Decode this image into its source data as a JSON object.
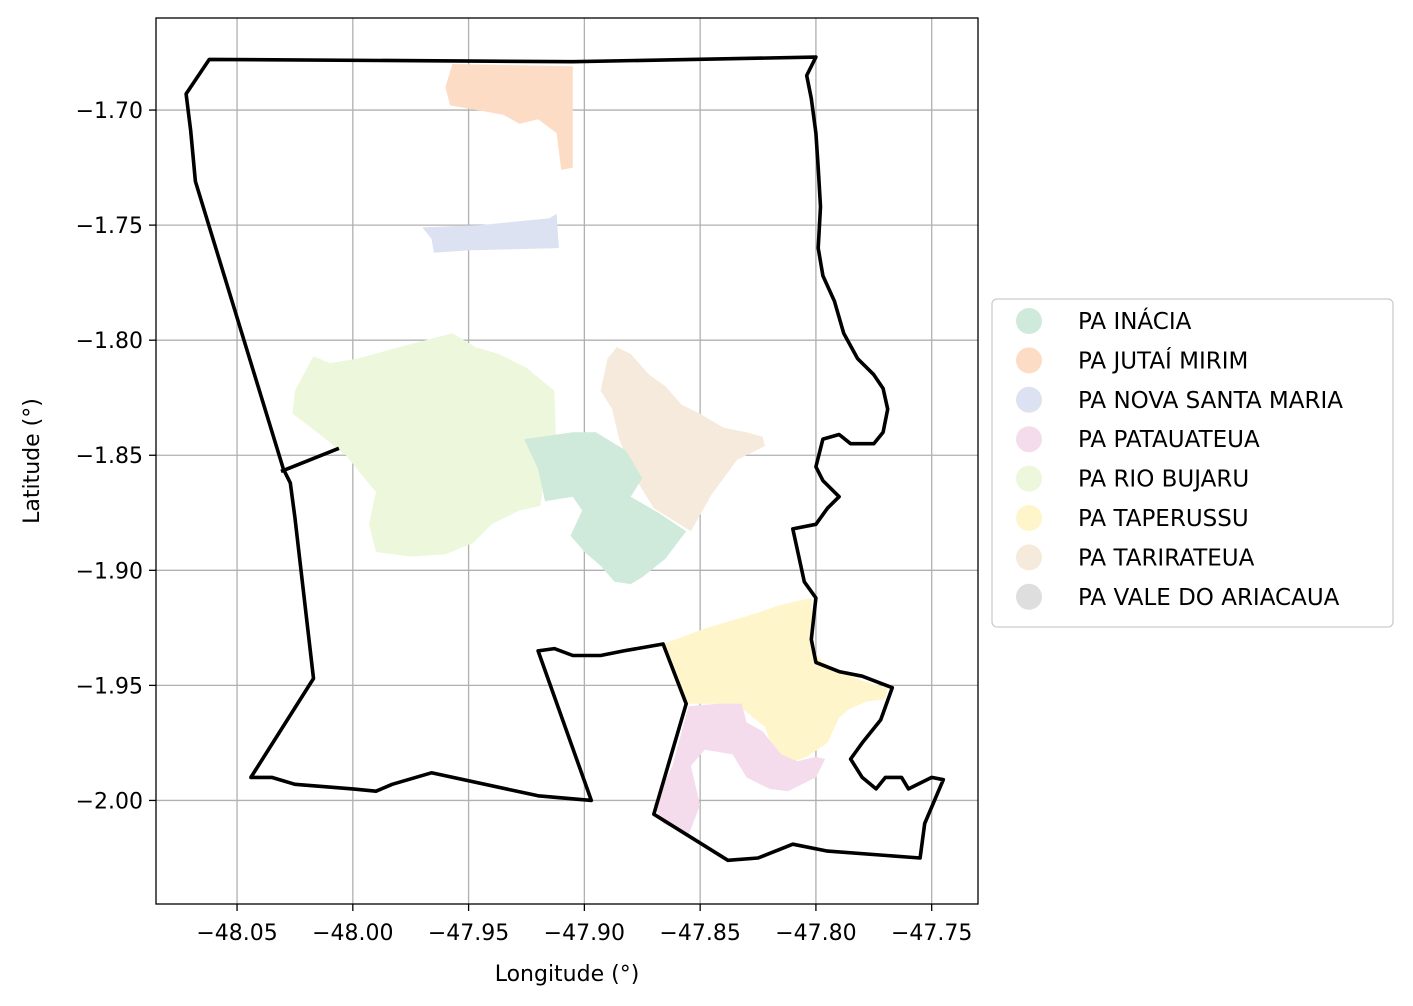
{
  "chart_data": {
    "type": "map",
    "xlabel": "Longitude (°)",
    "ylabel": "Latitude (°)",
    "xlim": [
      -48.085,
      -47.73
    ],
    "ylim": [
      -2.045,
      -1.66
    ],
    "grid": true,
    "legend_placement": "center-right",
    "x_ticks": [
      {
        "value": -48.05,
        "label": "−48.05"
      },
      {
        "value": -48.0,
        "label": "−48.00"
      },
      {
        "value": -47.95,
        "label": "−47.95"
      },
      {
        "value": -47.9,
        "label": "−47.90"
      },
      {
        "value": -47.85,
        "label": "−47.85"
      },
      {
        "value": -47.8,
        "label": "−47.80"
      },
      {
        "value": -47.75,
        "label": "−47.75"
      }
    ],
    "y_ticks": [
      {
        "value": -1.7,
        "label": "−1.70"
      },
      {
        "value": -1.75,
        "label": "−1.75"
      },
      {
        "value": -1.8,
        "label": "−1.80"
      },
      {
        "value": -1.85,
        "label": "−1.85"
      },
      {
        "value": -1.9,
        "label": "−1.90"
      },
      {
        "value": -1.95,
        "label": "−1.95"
      },
      {
        "value": -2.0,
        "label": "−2.00"
      }
    ],
    "legend": [
      {
        "name": "PA INÁCIA",
        "color": "#cfeadb"
      },
      {
        "name": "PA JUTAÍ MIRIM",
        "color": "#fddcc6"
      },
      {
        "name": "PA NOVA SANTA MARIA",
        "color": "#dce2f1"
      },
      {
        "name": "PA PATAUATEUA",
        "color": "#f5dcec"
      },
      {
        "name": "PA RIO BUJARU",
        "color": "#ecf7dc"
      },
      {
        "name": "PA TAPERUSSU",
        "color": "#fff5cb"
      },
      {
        "name": "PA TARIRATEUA",
        "color": "#f5eadb"
      },
      {
        "name": "PA VALE DO ARIACAUA",
        "color": "#dedede"
      }
    ],
    "regions": [
      {
        "name": "PA JUTAÍ MIRIM",
        "color": "#fddcc6",
        "coords": [
          [
            -47.957,
            -1.68
          ],
          [
            -47.905,
            -1.681
          ],
          [
            -47.905,
            -1.725
          ],
          [
            -47.91,
            -1.726
          ],
          [
            -47.912,
            -1.71
          ],
          [
            -47.92,
            -1.704
          ],
          [
            -47.928,
            -1.706
          ],
          [
            -47.935,
            -1.702
          ],
          [
            -47.958,
            -1.698
          ],
          [
            -47.96,
            -1.69
          ]
        ]
      },
      {
        "name": "PA NOVA SANTA MARIA",
        "color": "#dce2f1",
        "coords": [
          [
            -47.97,
            -1.751
          ],
          [
            -47.945,
            -1.75
          ],
          [
            -47.915,
            -1.747
          ],
          [
            -47.912,
            -1.745
          ],
          [
            -47.911,
            -1.76
          ],
          [
            -47.95,
            -1.761
          ],
          [
            -47.965,
            -1.762
          ],
          [
            -47.966,
            -1.756
          ]
        ]
      },
      {
        "name": "PA RIO BUJARU",
        "color": "#ecf7dc",
        "coords": [
          [
            -48.025,
            -1.822
          ],
          [
            -48.017,
            -1.807
          ],
          [
            -48.01,
            -1.81
          ],
          [
            -47.998,
            -1.808
          ],
          [
            -47.98,
            -1.803
          ],
          [
            -47.957,
            -1.797
          ],
          [
            -47.947,
            -1.803
          ],
          [
            -47.937,
            -1.806
          ],
          [
            -47.925,
            -1.812
          ],
          [
            -47.913,
            -1.822
          ],
          [
            -47.912,
            -1.85
          ],
          [
            -47.918,
            -1.865
          ],
          [
            -47.919,
            -1.872
          ],
          [
            -47.928,
            -1.874
          ],
          [
            -47.94,
            -1.88
          ],
          [
            -47.945,
            -1.885
          ],
          [
            -47.948,
            -1.888
          ],
          [
            -47.96,
            -1.893
          ],
          [
            -47.975,
            -1.894
          ],
          [
            -47.99,
            -1.892
          ],
          [
            -47.993,
            -1.88
          ],
          [
            -47.99,
            -1.866
          ],
          [
            -47.995,
            -1.86
          ],
          [
            -48.003,
            -1.85
          ],
          [
            -48.018,
            -1.838
          ],
          [
            -48.026,
            -1.832
          ]
        ]
      },
      {
        "name": "PA TARIRATEUA",
        "color": "#f5eadb",
        "coords": [
          [
            -47.89,
            -1.808
          ],
          [
            -47.886,
            -1.803
          ],
          [
            -47.88,
            -1.806
          ],
          [
            -47.872,
            -1.815
          ],
          [
            -47.865,
            -1.82
          ],
          [
            -47.858,
            -1.828
          ],
          [
            -47.85,
            -1.832
          ],
          [
            -47.84,
            -1.838
          ],
          [
            -47.83,
            -1.84
          ],
          [
            -47.823,
            -1.842
          ],
          [
            -47.822,
            -1.846
          ],
          [
            -47.834,
            -1.852
          ],
          [
            -47.845,
            -1.867
          ],
          [
            -47.854,
            -1.883
          ],
          [
            -47.87,
            -1.873
          ],
          [
            -47.878,
            -1.86
          ],
          [
            -47.885,
            -1.843
          ],
          [
            -47.888,
            -1.83
          ],
          [
            -47.893,
            -1.822
          ]
        ]
      },
      {
        "name": "PA INÁCIA",
        "color": "#cfeadb",
        "coords": [
          [
            -47.926,
            -1.843
          ],
          [
            -47.905,
            -1.84
          ],
          [
            -47.895,
            -1.84
          ],
          [
            -47.882,
            -1.848
          ],
          [
            -47.875,
            -1.86
          ],
          [
            -47.88,
            -1.868
          ],
          [
            -47.868,
            -1.875
          ],
          [
            -47.856,
            -1.883
          ],
          [
            -47.865,
            -1.895
          ],
          [
            -47.875,
            -1.903
          ],
          [
            -47.88,
            -1.906
          ],
          [
            -47.887,
            -1.905
          ],
          [
            -47.893,
            -1.898
          ],
          [
            -47.9,
            -1.892
          ],
          [
            -47.906,
            -1.885
          ],
          [
            -47.901,
            -1.874
          ],
          [
            -47.905,
            -1.868
          ],
          [
            -47.917,
            -1.87
          ],
          [
            -47.92,
            -1.856
          ]
        ]
      },
      {
        "name": "PA TAPERUSSU",
        "color": "#fff5cb",
        "coords": [
          [
            -47.866,
            -1.932
          ],
          [
            -47.847,
            -1.925
          ],
          [
            -47.83,
            -1.92
          ],
          [
            -47.815,
            -1.915
          ],
          [
            -47.802,
            -1.912
          ],
          [
            -47.801,
            -1.935
          ],
          [
            -47.797,
            -1.94
          ],
          [
            -47.787,
            -1.945
          ],
          [
            -47.78,
            -1.948
          ],
          [
            -47.769,
            -1.951
          ],
          [
            -47.77,
            -1.956
          ],
          [
            -47.778,
            -1.957
          ],
          [
            -47.785,
            -1.96
          ],
          [
            -47.79,
            -1.964
          ],
          [
            -47.795,
            -1.975
          ],
          [
            -47.804,
            -1.981
          ],
          [
            -47.815,
            -1.985
          ],
          [
            -47.818,
            -1.98
          ],
          [
            -47.822,
            -1.968
          ],
          [
            -47.832,
            -1.96
          ],
          [
            -47.842,
            -1.958
          ],
          [
            -47.857,
            -1.958
          ],
          [
            -47.862,
            -1.945
          ]
        ]
      },
      {
        "name": "PA PATAUATEUA",
        "color": "#f5dcec",
        "coords": [
          [
            -47.855,
            -1.959
          ],
          [
            -47.842,
            -1.958
          ],
          [
            -47.832,
            -1.958
          ],
          [
            -47.83,
            -1.966
          ],
          [
            -47.823,
            -1.97
          ],
          [
            -47.815,
            -1.98
          ],
          [
            -47.808,
            -1.983
          ],
          [
            -47.8,
            -1.981
          ],
          [
            -47.796,
            -1.982
          ],
          [
            -47.8,
            -1.99
          ],
          [
            -47.812,
            -1.996
          ],
          [
            -47.82,
            -1.995
          ],
          [
            -47.83,
            -1.99
          ],
          [
            -47.836,
            -1.98
          ],
          [
            -47.848,
            -1.978
          ],
          [
            -47.854,
            -1.985
          ],
          [
            -47.85,
            -2.002
          ],
          [
            -47.855,
            -2.015
          ],
          [
            -47.866,
            -2.01
          ],
          [
            -47.87,
            -2.002
          ],
          [
            -47.862,
            -1.985
          ]
        ]
      }
    ],
    "boundaries": [
      {
        "coords": [
          [
            -48.062,
            -1.678
          ],
          [
            -47.905,
            -1.679
          ],
          [
            -47.8,
            -1.677
          ],
          [
            -47.804,
            -1.685
          ],
          [
            -47.802,
            -1.695
          ],
          [
            -47.8,
            -1.71
          ],
          [
            -47.799,
            -1.725
          ],
          [
            -47.798,
            -1.742
          ],
          [
            -47.799,
            -1.76
          ],
          [
            -47.797,
            -1.772
          ],
          [
            -47.792,
            -1.783
          ],
          [
            -47.788,
            -1.797
          ],
          [
            -47.782,
            -1.808
          ],
          [
            -47.775,
            -1.815
          ],
          [
            -47.771,
            -1.821
          ],
          [
            -47.769,
            -1.83
          ],
          [
            -47.771,
            -1.84
          ],
          [
            -47.775,
            -1.845
          ],
          [
            -47.785,
            -1.845
          ],
          [
            -47.79,
            -1.841
          ],
          [
            -47.797,
            -1.843
          ],
          [
            -47.8,
            -1.855
          ],
          [
            -47.797,
            -1.861
          ],
          [
            -47.79,
            -1.868
          ],
          [
            -47.795,
            -1.873
          ],
          [
            -47.8,
            -1.88
          ],
          [
            -47.81,
            -1.882
          ],
          [
            -47.805,
            -1.905
          ],
          [
            -47.8,
            -1.912
          ],
          [
            -47.802,
            -1.93
          ],
          [
            -47.8,
            -1.94
          ],
          [
            -47.79,
            -1.944
          ],
          [
            -47.78,
            -1.946
          ],
          [
            -47.767,
            -1.951
          ],
          [
            -47.772,
            -1.965
          ],
          [
            -47.78,
            -1.975
          ],
          [
            -47.785,
            -1.982
          ],
          [
            -47.78,
            -1.99
          ],
          [
            -47.774,
            -1.995
          ],
          [
            -47.77,
            -1.99
          ],
          [
            -47.763,
            -1.99
          ],
          [
            -47.76,
            -1.995
          ],
          [
            -47.754,
            -1.992
          ],
          [
            -47.75,
            -1.99
          ],
          [
            -47.745,
            -1.991
          ],
          [
            -47.753,
            -2.01
          ],
          [
            -47.755,
            -2.025
          ],
          [
            -47.795,
            -2.022
          ],
          [
            -47.81,
            -2.019
          ],
          [
            -47.825,
            -2.025
          ],
          [
            -47.838,
            -2.026
          ],
          [
            -47.87,
            -2.006
          ],
          [
            -47.856,
            -1.958
          ],
          [
            -47.866,
            -1.932
          ],
          [
            -47.883,
            -1.935
          ],
          [
            -47.893,
            -1.937
          ],
          [
            -47.905,
            -1.937
          ],
          [
            -47.913,
            -1.934
          ],
          [
            -47.92,
            -1.935
          ],
          [
            -47.897,
            -2.0
          ],
          [
            -47.92,
            -1.998
          ],
          [
            -47.966,
            -1.988
          ],
          [
            -47.983,
            -1.993
          ],
          [
            -47.99,
            -1.996
          ],
          [
            -48.0,
            -1.995
          ],
          [
            -48.025,
            -1.993
          ],
          [
            -48.035,
            -1.99
          ],
          [
            -48.044,
            -1.99
          ],
          [
            -48.017,
            -1.947
          ],
          [
            -48.025,
            -1.877
          ],
          [
            -48.027,
            -1.862
          ],
          [
            -48.03,
            -1.856
          ],
          [
            -48.068,
            -1.731
          ],
          [
            -48.07,
            -1.709
          ],
          [
            -48.072,
            -1.693
          ],
          [
            -48.062,
            -1.678
          ]
        ]
      },
      {
        "closed": false,
        "coords": [
          [
            -48.031,
            -1.857
          ],
          [
            -48.006,
            -1.847
          ]
        ]
      }
    ]
  }
}
